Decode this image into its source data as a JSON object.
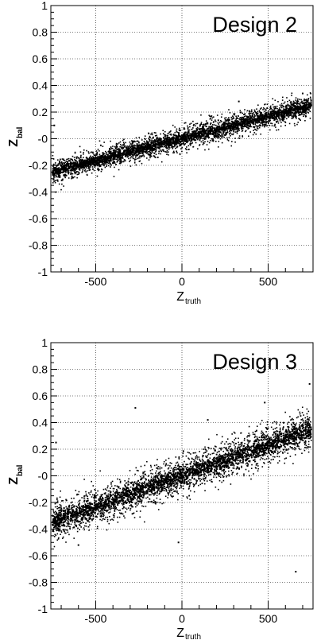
{
  "chart_data": [
    {
      "type": "scatter",
      "title": "Design 2",
      "xlabel": "Z",
      "xlabel_sub": "truth",
      "ylabel": "Z",
      "ylabel_sub": "bal",
      "xlim": [
        -760,
        760
      ],
      "ylim": [
        -1,
        1
      ],
      "xticks": [
        -500,
        0,
        500
      ],
      "yticks": [
        -1,
        -0.8,
        -0.6,
        -0.4,
        -0.2,
        0,
        0.2,
        0.4,
        0.6,
        0.8,
        1
      ],
      "ytick_labels": [
        "-1",
        "-0.8",
        "-0.6",
        "-0.4",
        "-0.2",
        "-0",
        "0.2",
        "0.4",
        "0.6",
        "0.8",
        "1"
      ],
      "grid": true,
      "trend": {
        "slope": 0.000333,
        "intercept": 0.0,
        "band_halfwidth": 0.1
      },
      "series": [
        {
          "x": [
            -750,
            -600,
            -500,
            -300,
            -100,
            0,
            200,
            400,
            600,
            750
          ],
          "y": [
            -0.25,
            -0.2,
            -0.17,
            -0.1,
            -0.03,
            0.0,
            0.07,
            0.13,
            0.2,
            0.25
          ]
        }
      ],
      "outliers": [
        {
          "x": -740,
          "y": 0.1
        },
        {
          "x": -140,
          "y": -0.14
        },
        {
          "x": 330,
          "y": 0.28
        },
        {
          "x": 700,
          "y": 0.34
        }
      ]
    },
    {
      "type": "scatter",
      "title": "Design 3",
      "xlabel": "Z",
      "xlabel_sub": "truth",
      "ylabel": "Z",
      "ylabel_sub": "bal",
      "xlim": [
        -760,
        760
      ],
      "ylim": [
        -1,
        1
      ],
      "xticks": [
        -500,
        0,
        500
      ],
      "yticks": [
        -1,
        -0.8,
        -0.6,
        -0.4,
        -0.2,
        0,
        0.2,
        0.4,
        0.6,
        0.8,
        1
      ],
      "ytick_labels": [
        "-1",
        "-0.8",
        "-0.6",
        "-0.4",
        "-0.2",
        "-0",
        "0.2",
        "0.4",
        "0.6",
        "0.8",
        "1"
      ],
      "grid": true,
      "trend": {
        "slope": 0.000467,
        "intercept": 0.0,
        "band_halfwidth": 0.16
      },
      "series": [
        {
          "x": [
            -750,
            -600,
            -500,
            -300,
            -100,
            0,
            200,
            400,
            600,
            750
          ],
          "y": [
            -0.35,
            -0.28,
            -0.23,
            -0.14,
            -0.05,
            0.0,
            0.09,
            0.19,
            0.28,
            0.35
          ]
        }
      ],
      "outliers": [
        {
          "x": -730,
          "y": 0.25
        },
        {
          "x": -270,
          "y": 0.51
        },
        {
          "x": -20,
          "y": -0.5
        },
        {
          "x": 150,
          "y": 0.42
        },
        {
          "x": 660,
          "y": -0.72
        },
        {
          "x": 740,
          "y": 0.69
        },
        {
          "x": -600,
          "y": -0.52
        },
        {
          "x": 480,
          "y": 0.55
        }
      ]
    }
  ]
}
